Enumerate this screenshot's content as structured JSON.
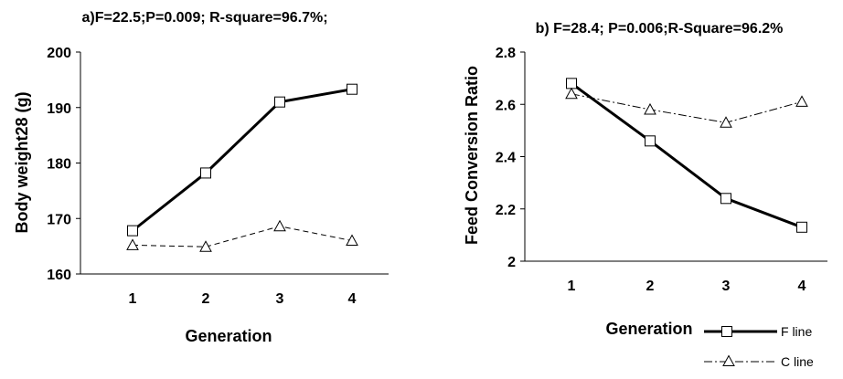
{
  "chart_data": [
    {
      "type": "line",
      "title": "a)F=22.5;P=0.009; R-square=96.7%;",
      "xlabel": "Generation",
      "ylabel": "Body weight28 (g)",
      "x": [
        1,
        2,
        3,
        4
      ],
      "x_tick_labels": [
        "1",
        "2",
        "3",
        "4"
      ],
      "ylim": [
        160,
        200
      ],
      "y_ticks": [
        160,
        170,
        180,
        190,
        200
      ],
      "y_tick_labels": [
        "160",
        "170",
        "180",
        "190",
        "200"
      ],
      "grid": false,
      "series": [
        {
          "name": "F line",
          "values": [
            167.8,
            178.2,
            191.0,
            193.3
          ]
        },
        {
          "name": "C line",
          "values": [
            165.2,
            164.9,
            168.6,
            166.0
          ]
        }
      ]
    },
    {
      "type": "line",
      "title": "b) F=28.4; P=0.006;R-Square=96.2%",
      "xlabel": "Generation",
      "ylabel": "Feed Conversion Ratio",
      "x": [
        1,
        2,
        3,
        4
      ],
      "x_tick_labels": [
        "1",
        "2",
        "3",
        "4"
      ],
      "ylim": [
        2.0,
        2.8
      ],
      "y_ticks": [
        2.0,
        2.2,
        2.4,
        2.6,
        2.8
      ],
      "y_tick_labels": [
        "2",
        "2.2",
        "2.4",
        "2.6",
        "2.8"
      ],
      "grid": false,
      "series": [
        {
          "name": "F line",
          "values": [
            2.68,
            2.46,
            2.24,
            2.13
          ]
        },
        {
          "name": "C line",
          "values": [
            2.64,
            2.58,
            2.53,
            2.61
          ]
        }
      ]
    }
  ],
  "legend": {
    "placement": "bottom-right",
    "items": [
      {
        "label": "F line",
        "line_style": "solid",
        "marker": "square"
      },
      {
        "label": "C line",
        "line_style": "dash-dot",
        "marker": "triangle"
      }
    ]
  }
}
